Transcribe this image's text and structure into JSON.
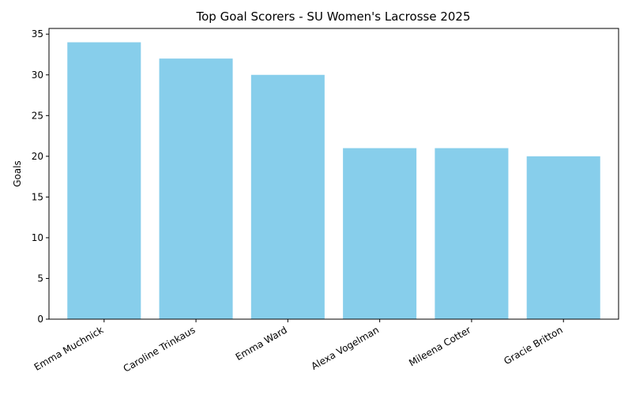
{
  "chart_data": {
    "type": "bar",
    "title": "Top Goal Scorers - SU Women's Lacrosse 2025",
    "xlabel": "",
    "ylabel": "Goals",
    "categories": [
      "Emma Muchnick",
      "Caroline Trinkaus",
      "Emma Ward",
      "Alexa Vogelman",
      "Mileena Cotter",
      "Gracie Britton"
    ],
    "values": [
      34,
      32,
      30,
      21,
      21,
      20
    ],
    "ylim": [
      0,
      35.7
    ],
    "yticks": [
      0,
      5,
      10,
      15,
      20,
      25,
      30,
      35
    ],
    "bar_color": "#87CEEB",
    "grid": false,
    "legend": false
  }
}
